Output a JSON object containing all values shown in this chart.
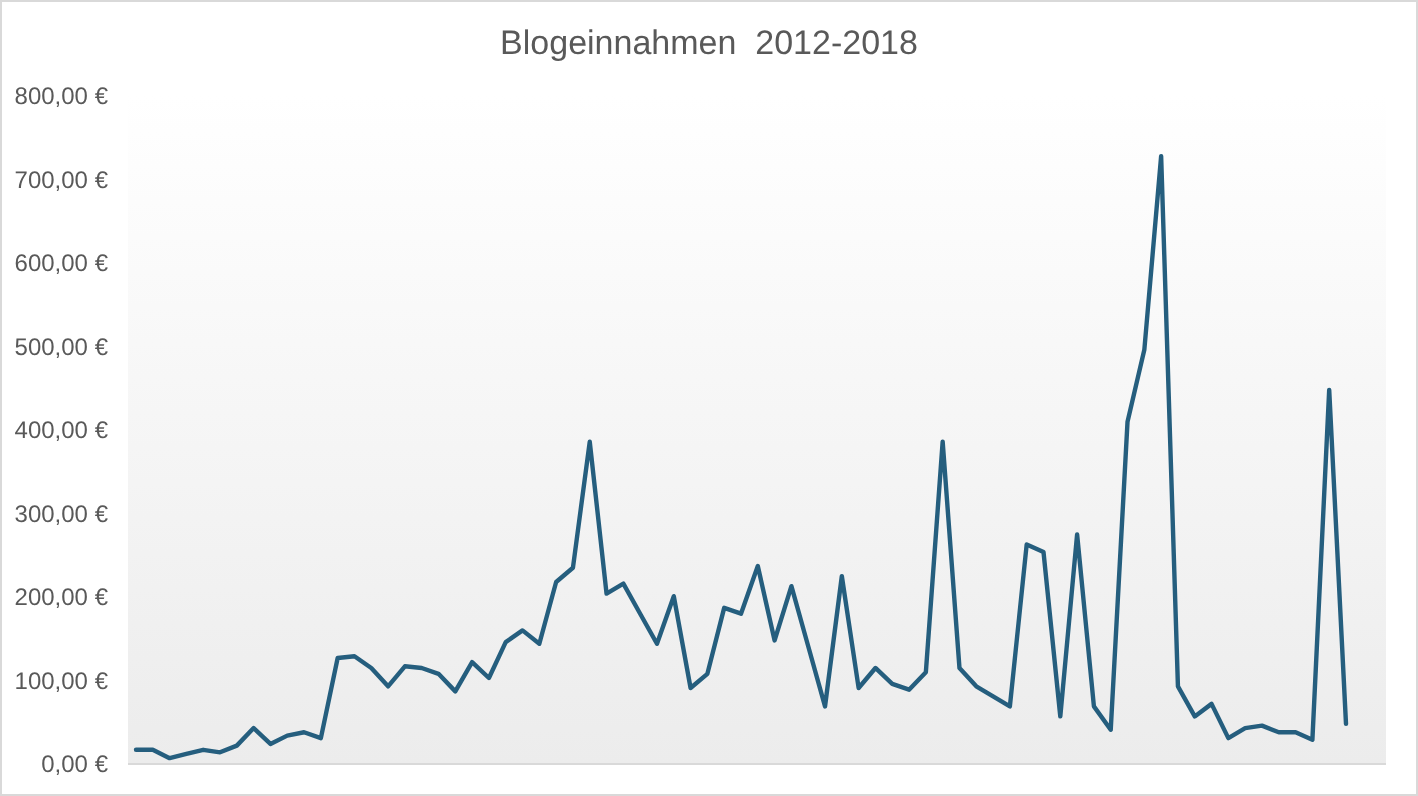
{
  "chart_data": {
    "type": "line",
    "title": "Blogeinnahmen  2012-2018",
    "categories": [
      null,
      null,
      null,
      null,
      null,
      null,
      null,
      null,
      null,
      null,
      null,
      null,
      null,
      null,
      null,
      null,
      null,
      null,
      null,
      null,
      null,
      null,
      null,
      null,
      null,
      null,
      null,
      null,
      null,
      null,
      null,
      null,
      null,
      null,
      null,
      null,
      null,
      null,
      null,
      null,
      null,
      null,
      null,
      null,
      null,
      null,
      null,
      null,
      null,
      null,
      null,
      null,
      null,
      null,
      null,
      null,
      null,
      null,
      null,
      null,
      null,
      null,
      null,
      null,
      null,
      null,
      null,
      null,
      null,
      null,
      null,
      null,
      null
    ],
    "series": [
      {
        "color": "#255e7e",
        "values": [
          17,
          17,
          7,
          12,
          17,
          14,
          22,
          43,
          24,
          34,
          38,
          31,
          127,
          129,
          115,
          93,
          117,
          115,
          108,
          87,
          122,
          103,
          146,
          160,
          144,
          218,
          235,
          386,
          204,
          216,
          180,
          144,
          201,
          91,
          108,
          187,
          180,
          237,
          148,
          213,
          141,
          69,
          225,
          91,
          115,
          96,
          89,
          110,
          386,
          115,
          93,
          81,
          69,
          263,
          254,
          57,
          275,
          69,
          41,
          410,
          496,
          728,
          93,
          57,
          72,
          31,
          43,
          46,
          38,
          38,
          29,
          448,
          48
        ]
      }
    ],
    "ylim": [
      0,
      800
    ],
    "yticks": [
      {
        "value": 0,
        "label": "0,00 €"
      },
      {
        "value": 100,
        "label": "100,00 €"
      },
      {
        "value": 200,
        "label": "200,00 €"
      },
      {
        "value": 300,
        "label": "300,00 €"
      },
      {
        "value": 400,
        "label": "400,00 €"
      },
      {
        "value": 500,
        "label": "500,00 €"
      },
      {
        "value": 600,
        "label": "600,00 €"
      },
      {
        "value": 700,
        "label": "700,00 €"
      },
      {
        "value": 800,
        "label": "800,00 €"
      }
    ],
    "grid": false,
    "marker": "none",
    "line_style": "solid"
  }
}
